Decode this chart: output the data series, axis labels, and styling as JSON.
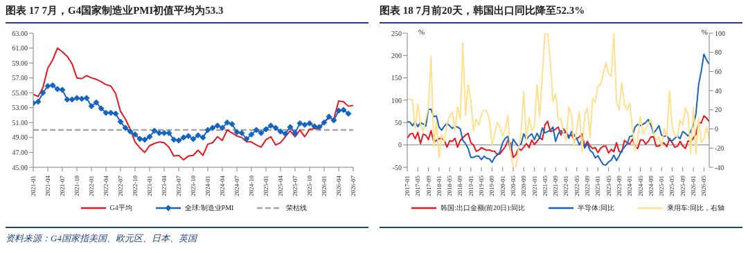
{
  "chart_data": [
    {
      "type": "line",
      "title": "图表 17 7月，G4国家制造业PMI初值平均为53.3",
      "annotations": [
        "资料来源：G4国家指美国、欧元区、日本、英国"
      ],
      "x": [
        "2021-01",
        "2021-02",
        "2021-03",
        "2021-04",
        "2021-05",
        "2021-06",
        "2021-07",
        "2021-08",
        "2021-09",
        "2021-10",
        "2021-11",
        "2021-12",
        "2022-01",
        "2022-02",
        "2022-03",
        "2022-04",
        "2022-05",
        "2022-06",
        "2022-07",
        "2022-08",
        "2022-09",
        "2022-10",
        "2022-11",
        "2022-12",
        "2023-01",
        "2023-02",
        "2023-03",
        "2023-04",
        "2023-05",
        "2023-06",
        "2023-07",
        "2023-08",
        "2023-09",
        "2023-10",
        "2023-11",
        "2023-12",
        "2024-01",
        "2024-02",
        "2024-03",
        "2024-04",
        "2024-05",
        "2024-06",
        "2024-07",
        "2024-08",
        "2024-09",
        "2024-10",
        "2024-11",
        "2024-12",
        "2025-01",
        "2025-02",
        "2025-03",
        "2025-04",
        "2025-05",
        "2025-06",
        "2025-07",
        "2025-08",
        "2025-09",
        "2025-10",
        "2025-11",
        "2025-12",
        "2026-01",
        "2026-02",
        "2026-03",
        "2026-04",
        "2026-05",
        "2026-06",
        "2026-07"
      ],
      "xlim": [
        "2021-01",
        "2026-07"
      ],
      "xticks": [
        "2021-01",
        "2021-04",
        "2021-07",
        "2021-10",
        "2022-01",
        "2022-04",
        "2022-07",
        "2022-10",
        "2023-01",
        "2023-04",
        "2023-07",
        "2023-10",
        "2024-01",
        "2024-04",
        "2024-07",
        "2024-10",
        "2025-01",
        "2025-04",
        "2025-07",
        "2025-10",
        "2026-01",
        "2026-04",
        "2026-07"
      ],
      "ylim": [
        45,
        63
      ],
      "yticks": [
        {
          "value": 45,
          "label": "45.00"
        },
        {
          "value": 47,
          "label": "47.00"
        },
        {
          "value": 49,
          "label": "49.00"
        },
        {
          "value": 51,
          "label": "51.00"
        },
        {
          "value": 53,
          "label": "53.00"
        },
        {
          "value": 55,
          "label": "55.00"
        },
        {
          "value": 57,
          "label": "57.00"
        },
        {
          "value": 59,
          "label": "59.00"
        },
        {
          "value": 61,
          "label": "61.00"
        },
        {
          "value": 63,
          "label": "63.00"
        }
      ],
      "legend": "bottom",
      "series": [
        {
          "name": "G4平均",
          "color": "#e8161e",
          "marker": "none",
          "values": [
            54.8,
            54.5,
            55.7,
            58.3,
            59.4,
            61.0,
            60.5,
            59.9,
            58.9,
            57.0,
            56.9,
            57.3,
            57.0,
            56.8,
            56.5,
            56.1,
            55.9,
            54.9,
            52.5,
            51.5,
            50.1,
            48.4,
            47.6,
            47.0,
            47.9,
            48.2,
            48.4,
            48.3,
            47.7,
            46.5,
            46.6,
            46.0,
            46.5,
            46.6,
            47.3,
            46.6,
            48.1,
            48.3,
            49.1,
            48.6,
            50.0,
            49.6,
            49.2,
            49.0,
            48.4,
            48.4,
            48.0,
            47.7,
            48.7,
            49.1,
            48.0,
            48.3,
            49.1,
            49.9,
            49.1,
            50.0,
            49.1,
            50.1,
            50.2,
            50.2,
            51.1,
            51.6,
            51.5,
            53.9,
            53.8,
            53.2,
            53.3
          ]
        },
        {
          "name": "全球:制造业PMI",
          "color": "#1565c0",
          "marker": "diamond",
          "values": [
            53.6,
            53.8,
            55.0,
            55.9,
            56.0,
            55.5,
            55.4,
            54.1,
            54.1,
            54.3,
            54.2,
            54.3,
            53.2,
            53.7,
            52.9,
            52.3,
            52.3,
            52.2,
            51.1,
            50.3,
            49.8,
            49.4,
            48.8,
            48.7,
            49.1,
            49.9,
            49.6,
            49.6,
            49.6,
            48.7,
            48.6,
            49.0,
            49.2,
            48.8,
            49.3,
            49.0,
            50.0,
            50.3,
            50.6,
            50.3,
            51.0,
            50.8,
            49.7,
            49.6,
            48.8,
            49.4,
            50.0,
            49.6,
            50.1,
            50.6,
            50.3,
            49.8,
            49.5,
            50.4,
            49.6,
            50.9,
            50.7,
            50.9,
            50.5,
            50.4,
            51.0,
            51.8,
            51.3,
            52.6,
            52.7,
            52.2,
            null
          ]
        }
      ],
      "ref_lines": [
        {
          "axis": "y",
          "value": 50,
          "label": "荣枯线",
          "color": "#a6a6a6",
          "line_style": "dashed"
        }
      ]
    },
    {
      "type": "line",
      "title": "图表 18 7月前20天，韩国出口同比降至52.3%",
      "ylabel": "%",
      "y2label": "%",
      "x": [
        "2017-01",
        "2017-02",
        "2017-03",
        "2017-04",
        "2017-05",
        "2017-06",
        "2017-07",
        "2017-08",
        "2017-09",
        "2017-10",
        "2017-11",
        "2017-12",
        "2018-01",
        "2018-02",
        "2018-03",
        "2018-04",
        "2018-05",
        "2018-06",
        "2018-07",
        "2018-08",
        "2018-09",
        "2018-10",
        "2018-11",
        "2018-12",
        "2019-01",
        "2019-02",
        "2019-03",
        "2019-04",
        "2019-05",
        "2019-06",
        "2019-07",
        "2019-08",
        "2019-09",
        "2019-10",
        "2019-11",
        "2019-12",
        "2020-01",
        "2020-02",
        "2020-03",
        "2020-04",
        "2020-05",
        "2020-06",
        "2020-07",
        "2020-08",
        "2020-09",
        "2020-10",
        "2020-11",
        "2020-12",
        "2021-01",
        "2021-02",
        "2021-03",
        "2021-04",
        "2021-05",
        "2021-06",
        "2021-07",
        "2021-08",
        "2021-09",
        "2021-10",
        "2021-11",
        "2021-12",
        "2022-01",
        "2022-02",
        "2022-03",
        "2022-04",
        "2022-05",
        "2022-06",
        "2022-07",
        "2022-08",
        "2022-09",
        "2022-10",
        "2022-11",
        "2022-12",
        "2023-01",
        "2023-02",
        "2023-03",
        "2023-04",
        "2023-05",
        "2023-06",
        "2023-07",
        "2023-08",
        "2023-09",
        "2023-10",
        "2023-11",
        "2023-12",
        "2024-01",
        "2024-02",
        "2024-03",
        "2024-04",
        "2024-05",
        "2024-06",
        "2024-07",
        "2024-08",
        "2024-09",
        "2024-10",
        "2024-11",
        "2024-12",
        "2025-01",
        "2025-02",
        "2025-03",
        "2025-04",
        "2025-05",
        "2025-06",
        "2025-07",
        "2025-08",
        "2025-09",
        "2025-10",
        "2025-11",
        "2025-12",
        "2026-01",
        "2026-02",
        "2026-03",
        "2026-04",
        "2026-05",
        "2026-06",
        "2026-07"
      ],
      "xlim": [
        "2017-01",
        "2026-07"
      ],
      "xticks": [
        "2017-01",
        "2017-05",
        "2017-09",
        "2018-01",
        "2018-05",
        "2018-09",
        "2019-01",
        "2019-05",
        "2019-09",
        "2020-01",
        "2020-05",
        "2020-09",
        "2021-01",
        "2021-05",
        "2021-09",
        "2022-01",
        "2022-05",
        "2022-09",
        "2023-01",
        "2023-05",
        "2023-09",
        "2024-01",
        "2024-05",
        "2024-09",
        "2025-01",
        "2025-05",
        "2025-09",
        "2026-01",
        "2026-05"
      ],
      "ylim": [
        -50,
        250
      ],
      "yticks": [
        -50,
        0,
        50,
        100,
        150,
        200,
        250
      ],
      "y2lim": [
        -40,
        100
      ],
      "y2ticks": [
        -40,
        -20,
        0,
        20,
        40,
        60,
        80,
        100
      ],
      "legend": "bottom",
      "series": [
        {
          "name": "韩国:出口金额(前20日):同比",
          "color": "#e8161e",
          "values": [
            15,
            24,
            26,
            14,
            28,
            3,
            24,
            22,
            12,
            32,
            6,
            10,
            14,
            15,
            10,
            -5,
            9,
            8,
            15,
            -5,
            10,
            16,
            22,
            26,
            5,
            0,
            -14,
            -12,
            -6,
            -9,
            -12,
            -11,
            -14,
            -14,
            -22,
            -20,
            -12,
            -4,
            10,
            5,
            -28,
            -22,
            -8,
            -12,
            -5,
            3,
            -6,
            11,
            1,
            8,
            16,
            12,
            45,
            53,
            30,
            32,
            35,
            40,
            22,
            36,
            28,
            20,
            23,
            11,
            14,
            18,
            25,
            -3,
            8,
            -3,
            -8,
            -6,
            -17,
            -8,
            -3,
            -3,
            -18,
            -10,
            -15,
            5,
            -15,
            -16,
            10,
            5,
            2,
            13,
            -3,
            -8,
            11,
            11,
            2,
            8,
            18,
            18,
            -3,
            -3,
            4,
            4,
            -4,
            15,
            5,
            -5,
            -3,
            8,
            -2,
            -8,
            9,
            7,
            15,
            24,
            51,
            49,
            65,
            60,
            52.3
          ]
        },
        {
          "name": "半导体:同比",
          "color": "#1565c0",
          "values": [
            52,
            51,
            43,
            52,
            41,
            50,
            47,
            42,
            80,
            80,
            63,
            65,
            40,
            33,
            42,
            48,
            43,
            37,
            42,
            40,
            36,
            10,
            3,
            -8,
            -28,
            -28,
            -25,
            -25,
            -33,
            -25,
            -30,
            -31,
            -39,
            -28,
            -22,
            -16,
            5,
            15,
            19,
            -15,
            13,
            4,
            -3,
            3,
            25,
            12,
            20,
            25,
            12,
            26,
            15,
            38,
            27,
            30,
            33,
            40,
            8,
            25,
            32,
            27,
            28,
            15,
            30,
            22,
            14,
            0,
            13,
            -7,
            3,
            -12,
            -17,
            -29,
            -24,
            -35,
            -44,
            -45,
            -38,
            -34,
            -23,
            -35,
            -25,
            -12,
            -5,
            2,
            19,
            20,
            40,
            46,
            43,
            46,
            50,
            57,
            44,
            26,
            34,
            43,
            22,
            19,
            21,
            10,
            9,
            15,
            20,
            14,
            30,
            26,
            20,
            30,
            45,
            70,
            135,
            165,
            203,
            190,
            181
          ]
        },
        {
          "name": "乘用车:同比，右轴",
          "color": "#ffe08c",
          "axis": "y2",
          "values": [
            31,
            31,
            30,
            0,
            26,
            5,
            -3,
            10,
            22,
            76,
            -18,
            8,
            -30,
            -6,
            -13,
            5,
            13,
            18,
            -2,
            23,
            10,
            90,
            14,
            46,
            30,
            -2,
            10,
            4,
            15,
            20,
            19,
            10,
            -17,
            -5,
            7,
            2,
            -8,
            0,
            14,
            -25,
            -40,
            -40,
            -20,
            -3,
            39,
            -12,
            12,
            -2,
            3,
            46,
            13,
            56,
            100,
            100,
            70,
            28,
            37,
            10,
            11,
            -5,
            -12,
            23,
            14,
            -18,
            0,
            18,
            -24,
            15,
            22,
            -9,
            32,
            28,
            45,
            46,
            58,
            69,
            58,
            55,
            100,
            28,
            20,
            49,
            25,
            20,
            27,
            0,
            -23,
            -10,
            13,
            -5,
            0,
            5,
            10,
            -3,
            -12,
            -8,
            -18,
            0,
            -8,
            40,
            3,
            -7,
            -8,
            9,
            4,
            22,
            15,
            -26,
            23,
            -26,
            11,
            -14,
            -10,
            2,
            -10
          ]
        }
      ],
      "ref_lines": [
        {
          "axis": "y",
          "value": 0,
          "color": "#808080",
          "line_style": "solid"
        }
      ]
    }
  ]
}
